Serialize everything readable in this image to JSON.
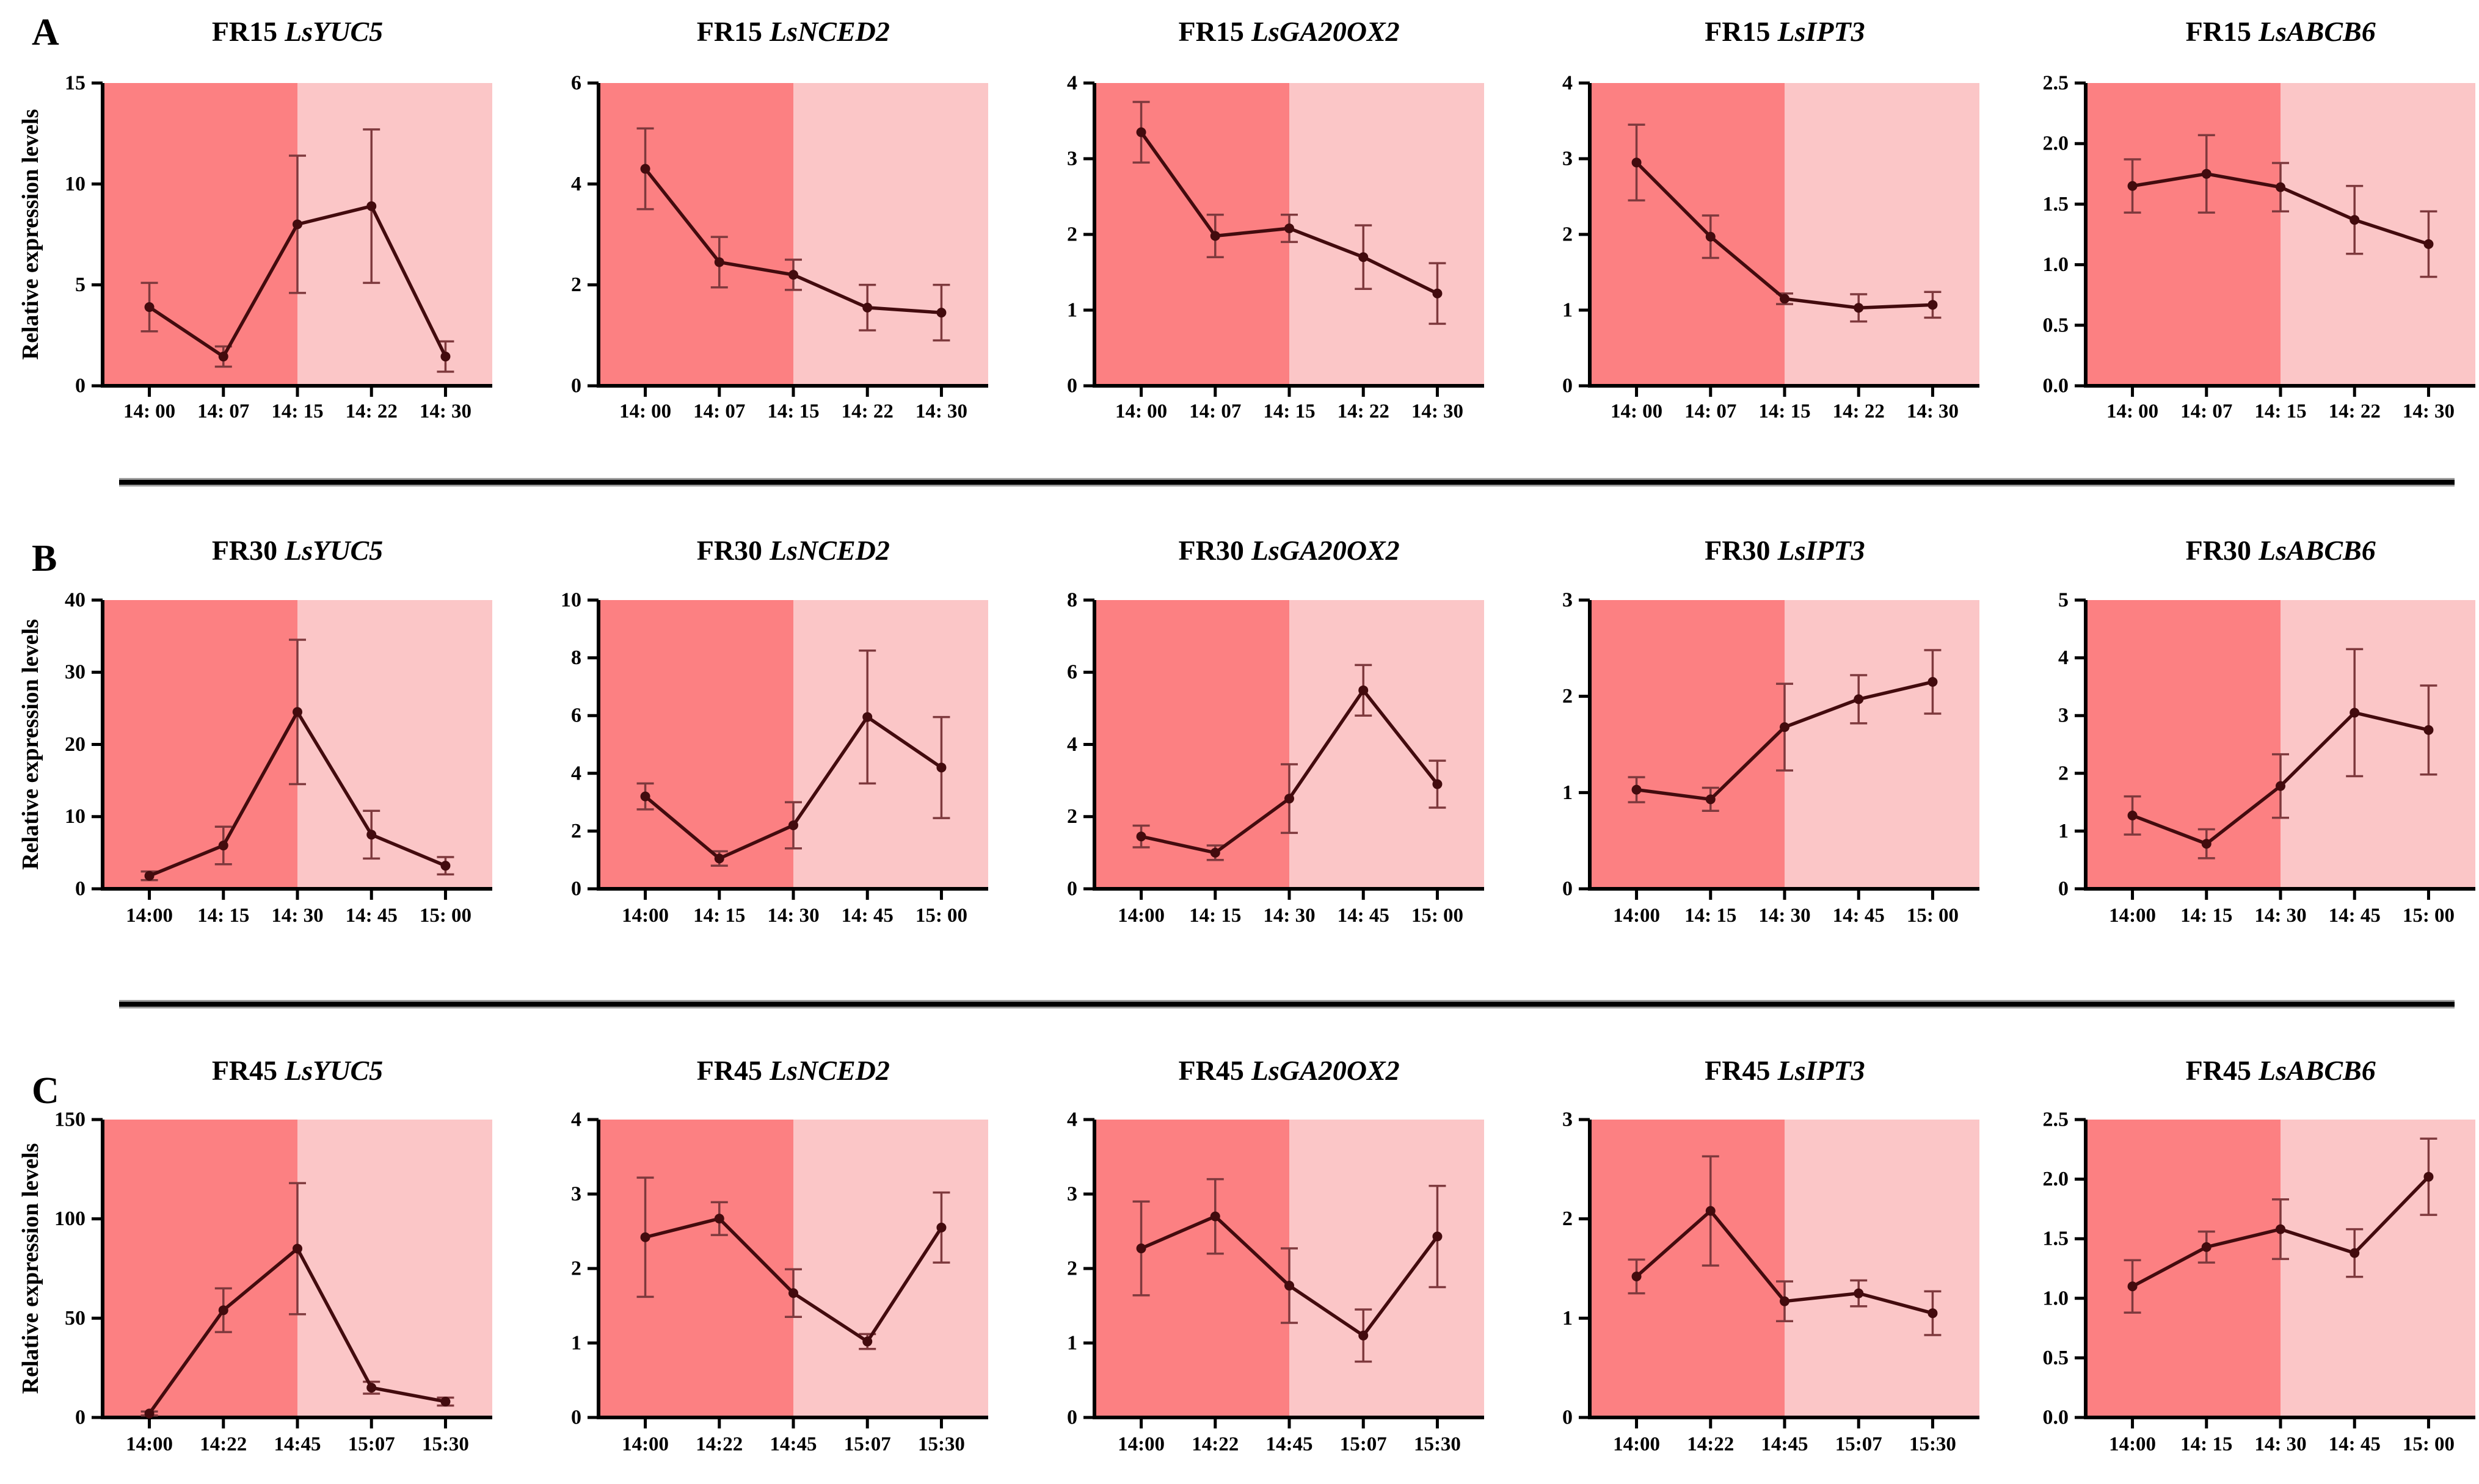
{
  "figure": {
    "ylabel": "Relative expression levels",
    "panels": [
      {
        "label": "A"
      },
      {
        "label": "B"
      },
      {
        "label": "C"
      }
    ]
  },
  "colors": {
    "dark_bg": "#FC8082",
    "light_bg": "#FBC6C7",
    "line": "#430B0E",
    "error_bar": "#7E393D",
    "axis": "#000000"
  },
  "chart_data": [
    {
      "panel": "A",
      "type": "line",
      "title_prefix": "FR15",
      "title_gene": "LsYUC5",
      "x_categories": [
        "14: 00",
        "14: 07",
        "14: 15",
        "14: 22",
        "14: 30"
      ],
      "values": [
        3.9,
        1.45,
        8.0,
        8.9,
        1.45
      ],
      "errors": [
        1.2,
        0.5,
        3.4,
        3.8,
        0.75
      ],
      "ylim": [
        0,
        15
      ],
      "ytick_labels": [
        "0",
        "5",
        "10",
        "15"
      ],
      "shade_boundary_index": 2,
      "show_ylabel": true
    },
    {
      "panel": "A",
      "type": "line",
      "title_prefix": "FR15",
      "title_gene": "LsNCED2",
      "x_categories": [
        "14: 00",
        "14: 07",
        "14: 15",
        "14: 22",
        "14: 30"
      ],
      "values": [
        4.3,
        2.45,
        2.2,
        1.55,
        1.45
      ],
      "errors": [
        0.8,
        0.5,
        0.3,
        0.45,
        0.55
      ],
      "ylim": [
        0,
        6
      ],
      "ytick_labels": [
        "0",
        "2",
        "4",
        "6"
      ],
      "shade_boundary_index": 2,
      "show_ylabel": false
    },
    {
      "panel": "A",
      "type": "line",
      "title_prefix": "FR15",
      "title_gene": "LsGA20OX2",
      "x_categories": [
        "14: 00",
        "14: 07",
        "14: 15",
        "14: 22",
        "14: 30"
      ],
      "values": [
        3.35,
        1.98,
        2.08,
        1.7,
        1.22
      ],
      "errors": [
        0.4,
        0.28,
        0.18,
        0.42,
        0.4
      ],
      "ylim": [
        0,
        4
      ],
      "ytick_labels": [
        "0",
        "1",
        "2",
        "3",
        "4"
      ],
      "shade_boundary_index": 2,
      "show_ylabel": false
    },
    {
      "panel": "A",
      "type": "line",
      "title_prefix": "FR15",
      "title_gene": "LsIPT3",
      "x_categories": [
        "14: 00",
        "14: 07",
        "14: 15",
        "14: 22",
        "14: 30"
      ],
      "values": [
        2.95,
        1.97,
        1.15,
        1.03,
        1.07
      ],
      "errors": [
        0.5,
        0.28,
        0.07,
        0.18,
        0.17
      ],
      "ylim": [
        0,
        4
      ],
      "ytick_labels": [
        "0",
        "1",
        "2",
        "3",
        "4"
      ],
      "shade_boundary_index": 2,
      "show_ylabel": false
    },
    {
      "panel": "A",
      "type": "line",
      "title_prefix": "FR15",
      "title_gene": "LsABCB6",
      "x_categories": [
        "14: 00",
        "14: 07",
        "14: 15",
        "14: 22",
        "14: 30"
      ],
      "values": [
        1.65,
        1.75,
        1.64,
        1.37,
        1.17
      ],
      "errors": [
        0.22,
        0.32,
        0.2,
        0.28,
        0.27
      ],
      "ylim": [
        0,
        2.5
      ],
      "ytick_labels": [
        "0.0",
        "0.5",
        "1.0",
        "1.5",
        "2.0",
        "2.5"
      ],
      "shade_boundary_index": 2,
      "show_ylabel": false
    },
    {
      "panel": "B",
      "type": "line",
      "title_prefix": "FR30",
      "title_gene": "LsYUC5",
      "x_categories": [
        "14:00",
        "14: 15",
        "14: 30",
        "14: 45",
        "15: 00"
      ],
      "values": [
        1.8,
        6.0,
        24.5,
        7.5,
        3.2
      ],
      "errors": [
        0.6,
        2.6,
        10.0,
        3.3,
        1.2
      ],
      "ylim": [
        0,
        40
      ],
      "ytick_labels": [
        "0",
        "10",
        "20",
        "30",
        "40"
      ],
      "shade_boundary_index": 2,
      "show_ylabel": true
    },
    {
      "panel": "B",
      "type": "line",
      "title_prefix": "FR30",
      "title_gene": "LsNCED2",
      "x_categories": [
        "14:00",
        "14: 15",
        "14: 30",
        "14: 45",
        "15: 00"
      ],
      "values": [
        3.2,
        1.05,
        2.2,
        5.95,
        4.2
      ],
      "errors": [
        0.45,
        0.25,
        0.8,
        2.3,
        1.75
      ],
      "ylim": [
        0,
        10
      ],
      "ytick_labels": [
        "0",
        "2",
        "4",
        "6",
        "8",
        "10"
      ],
      "shade_boundary_index": 2,
      "show_ylabel": false
    },
    {
      "panel": "B",
      "type": "line",
      "title_prefix": "FR30",
      "title_gene": "LsGA20OX2",
      "x_categories": [
        "14:00",
        "14: 15",
        "14: 30",
        "14: 45",
        "15: 00"
      ],
      "values": [
        1.45,
        1.0,
        2.5,
        5.5,
        2.9
      ],
      "errors": [
        0.3,
        0.2,
        0.95,
        0.7,
        0.65
      ],
      "ylim": [
        0,
        8
      ],
      "ytick_labels": [
        "0",
        "2",
        "4",
        "6",
        "8"
      ],
      "shade_boundary_index": 2,
      "show_ylabel": false
    },
    {
      "panel": "B",
      "type": "line",
      "title_prefix": "FR30",
      "title_gene": "LsIPT3",
      "x_categories": [
        "14:00",
        "14: 15",
        "14: 30",
        "14: 45",
        "15: 00"
      ],
      "values": [
        1.03,
        0.93,
        1.68,
        1.97,
        2.15
      ],
      "errors": [
        0.13,
        0.12,
        0.45,
        0.25,
        0.33
      ],
      "ylim": [
        0,
        3
      ],
      "ytick_labels": [
        "0",
        "1",
        "2",
        "3"
      ],
      "shade_boundary_index": 2,
      "show_ylabel": false
    },
    {
      "panel": "B",
      "type": "line",
      "title_prefix": "FR30",
      "title_gene": "LsABCB6",
      "x_categories": [
        "14:00",
        "14: 15",
        "14: 30",
        "14: 45",
        "15: 00"
      ],
      "values": [
        1.27,
        0.78,
        1.78,
        3.05,
        2.75
      ],
      "errors": [
        0.33,
        0.25,
        0.55,
        1.1,
        0.77
      ],
      "ylim": [
        0,
        5
      ],
      "ytick_labels": [
        "0",
        "1",
        "2",
        "3",
        "4",
        "5"
      ],
      "shade_boundary_index": 2,
      "show_ylabel": false
    },
    {
      "panel": "C",
      "type": "line",
      "title_prefix": "FR45",
      "title_gene": "LsYUC5",
      "x_categories": [
        "14:00",
        "14:22",
        "14:45",
        "15:07",
        "15:30"
      ],
      "values": [
        2,
        54,
        85,
        15,
        8
      ],
      "errors": [
        1,
        11,
        33,
        3,
        2
      ],
      "ylim": [
        0,
        150
      ],
      "ytick_labels": [
        "0",
        "50",
        "100",
        "150"
      ],
      "shade_boundary_index": 2,
      "show_ylabel": true
    },
    {
      "panel": "C",
      "type": "line",
      "title_prefix": "FR45",
      "title_gene": "LsNCED2",
      "x_categories": [
        "14:00",
        "14:22",
        "14:45",
        "15:07",
        "15:30"
      ],
      "values": [
        2.42,
        2.67,
        1.67,
        1.02,
        2.55
      ],
      "errors": [
        0.8,
        0.22,
        0.32,
        0.1,
        0.47
      ],
      "ylim": [
        0,
        4
      ],
      "ytick_labels": [
        "0",
        "1",
        "2",
        "3",
        "4"
      ],
      "shade_boundary_index": 2,
      "show_ylabel": false
    },
    {
      "panel": "C",
      "type": "line",
      "title_prefix": "FR45",
      "title_gene": "LsGA20OX2",
      "x_categories": [
        "14:00",
        "14:22",
        "14:45",
        "15:07",
        "15:30"
      ],
      "values": [
        2.27,
        2.7,
        1.77,
        1.1,
        2.43
      ],
      "errors": [
        0.63,
        0.5,
        0.5,
        0.35,
        0.68
      ],
      "ylim": [
        0,
        4
      ],
      "ytick_labels": [
        "0",
        "1",
        "2",
        "3",
        "4"
      ],
      "shade_boundary_index": 2,
      "show_ylabel": false
    },
    {
      "panel": "C",
      "type": "line",
      "title_prefix": "FR45",
      "title_gene": "LsIPT3",
      "x_categories": [
        "14:00",
        "14:22",
        "14:45",
        "15:07",
        "15:30"
      ],
      "values": [
        1.42,
        2.08,
        1.17,
        1.25,
        1.05
      ],
      "errors": [
        0.17,
        0.55,
        0.2,
        0.13,
        0.22
      ],
      "ylim": [
        0,
        3
      ],
      "ytick_labels": [
        "0",
        "1",
        "2",
        "3"
      ],
      "shade_boundary_index": 2,
      "show_ylabel": false
    },
    {
      "panel": "C",
      "type": "line",
      "title_prefix": "FR45",
      "title_gene": "LsABCB6",
      "x_categories": [
        "14:00",
        "14: 15",
        "14: 30",
        "14: 45",
        "15: 00"
      ],
      "values": [
        1.1,
        1.43,
        1.58,
        1.38,
        2.02
      ],
      "errors": [
        0.22,
        0.13,
        0.25,
        0.2,
        0.32
      ],
      "ylim": [
        0,
        2.5
      ],
      "ytick_labels": [
        "0.0",
        "0.5",
        "1.0",
        "1.5",
        "2.0",
        "2.5"
      ],
      "shade_boundary_index": 2,
      "show_ylabel": false
    }
  ]
}
